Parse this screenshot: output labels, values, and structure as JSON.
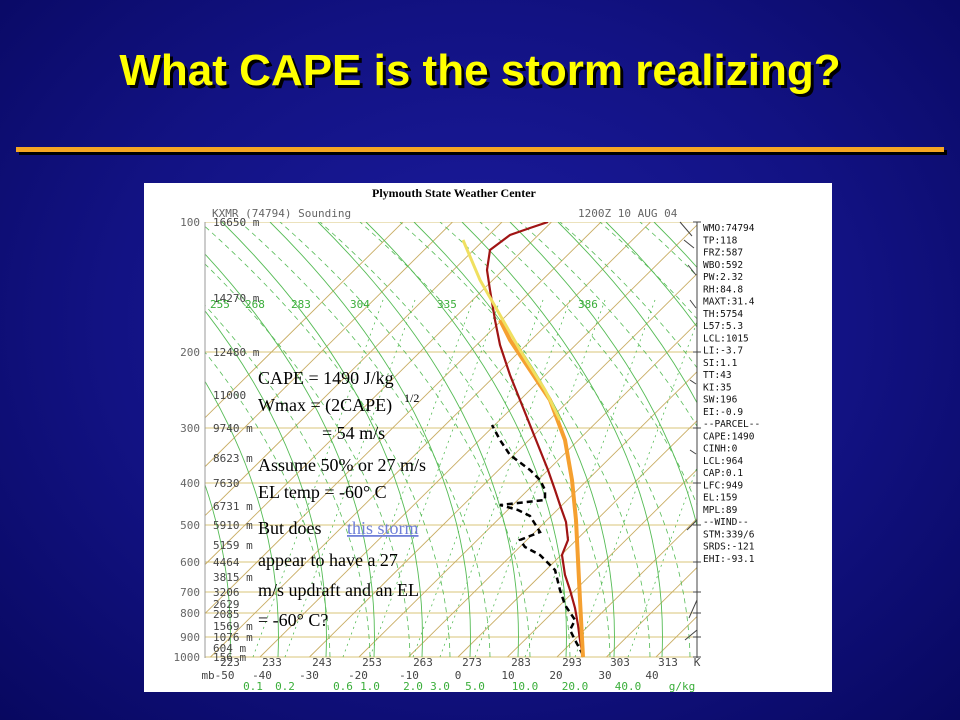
{
  "slide": {
    "title": "What CAPE is the storm realizing?",
    "sounding": {
      "header": "Plymouth State Weather Center",
      "station": "KXMR (74794) Sounding",
      "time": "1200Z 10 AUG 04",
      "pressure_labels": [
        "100",
        "200",
        "300",
        "400",
        "500",
        "600",
        "700",
        "800",
        "900",
        "1000"
      ],
      "height_labels": [
        "16650 m",
        "14270 m",
        "12480 m",
        "11000",
        "9740 m",
        "8623 m",
        "7630",
        "6731 m",
        "5910 m",
        "5159 m",
        "4464",
        "3815 m",
        "3206",
        "2629",
        "2085",
        "1569 m",
        "1076 m",
        "604 m",
        "156 m"
      ],
      "kelvin_labels": [
        "223",
        "233",
        "243",
        "253",
        "263",
        "273",
        "283",
        "293",
        "303",
        "313",
        "K"
      ],
      "celsius_labels": [
        "mb-50",
        "-40",
        "-30",
        "-20",
        "-10",
        "0",
        "10",
        "20",
        "30",
        "40"
      ],
      "mixing_ratio_labels": [
        "0.1",
        "0.2",
        "0.6",
        "1.0",
        "2.0",
        "3.0",
        "5.0",
        "10.0",
        "20.0",
        "40.0",
        "g/kg"
      ],
      "theta_e_labels": [
        "255",
        "268",
        "283",
        "304",
        "335",
        "386"
      ],
      "indices": [
        "WMO:74794",
        "TP:118",
        "FRZ:587",
        "WBO:592",
        "PW:2.32",
        "RH:84.8",
        "MAXT:31.4",
        "TH:5754",
        "L57:5.3",
        "LCL:1015",
        "LI:-3.7",
        "SI:1.1",
        "TT:43",
        "KI:35",
        "SW:196",
        "EI:-0.9",
        "--PARCEL--",
        "CAPE:1490",
        "CINH:0",
        "LCL:964",
        "CAP:0.1",
        "LFC:949",
        "EL:159",
        "MPL:89",
        "--WIND--",
        "STM:339/6",
        "SRDS:-121",
        "EHI:-93.1"
      ]
    },
    "notes": {
      "cape": "CAPE = 1490 J/kg",
      "wmax": "Wmax = (2CAPE)",
      "wmax_exponent": "1/2",
      "wmax_result": "= 54 m/s",
      "assume": "Assume 50% or 27 m/s",
      "el_temp": "EL temp = -60° C",
      "question_start": "But does",
      "question_link": "this storm",
      "question_lines": [
        "appear to have a 27",
        "m/s updraft and an EL",
        "= -60° C?"
      ]
    }
  }
}
